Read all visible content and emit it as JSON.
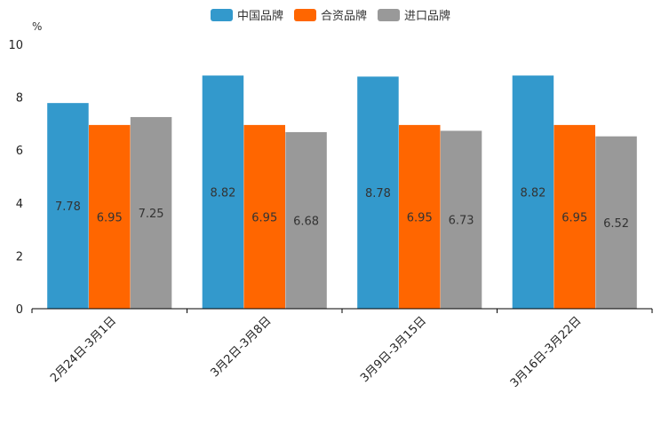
{
  "chart_data": {
    "type": "bar",
    "ylabel": "%",
    "ylim": [
      0,
      10
    ],
    "yticks": [
      "0",
      "2",
      "4",
      "6",
      "8",
      "10"
    ],
    "categories": [
      "2月24日-3月1日",
      "3月2日-3月8日",
      "3月9日-3月15日",
      "3月16日-3月22日"
    ],
    "series": [
      {
        "name": "中国品牌",
        "color": "#3399cc",
        "values": [
          7.78,
          8.82,
          8.78,
          8.82
        ],
        "labels": [
          "7.78",
          "8.82",
          "8.78",
          "8.82"
        ]
      },
      {
        "name": "合资品牌",
        "color": "#ff6600",
        "values": [
          6.95,
          6.95,
          6.95,
          6.95
        ],
        "labels": [
          "6.95",
          "6.95",
          "6.95",
          "6.95"
        ]
      },
      {
        "name": "进口品牌",
        "color": "#999999",
        "values": [
          7.25,
          6.68,
          6.73,
          6.52
        ],
        "labels": [
          "7.25",
          "6.68",
          "6.73",
          "6.52"
        ]
      }
    ],
    "legend_position": "top-center"
  }
}
